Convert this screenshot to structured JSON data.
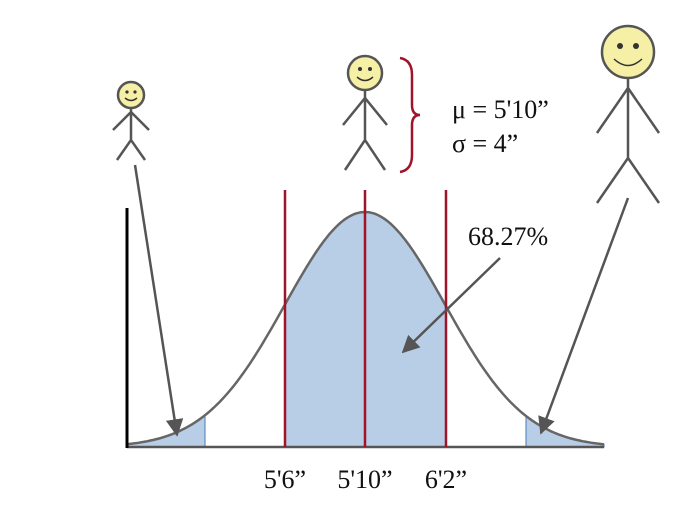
{
  "annotations": {
    "mean": "μ = 5'10”",
    "sd": "σ = 4”",
    "percent": "68.27%"
  },
  "axis_labels": [
    "5'6”",
    "5'10”",
    "6'2”"
  ]
}
